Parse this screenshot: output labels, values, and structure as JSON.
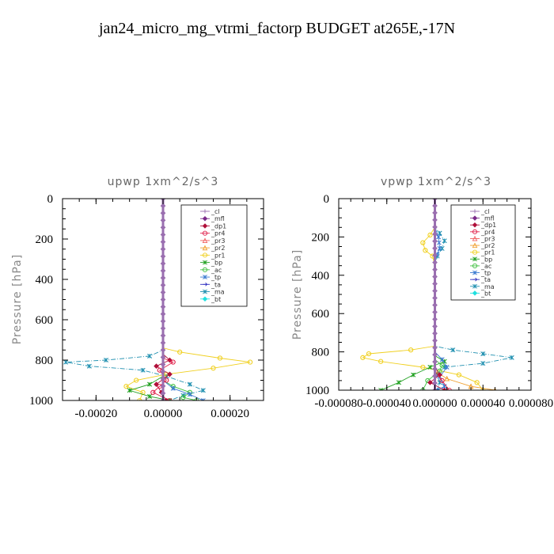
{
  "title": "jan24_micro_mg_vtrmi_factorp  BUDGET at265E,-17N",
  "legend_entries": [
    {
      "label": "_cl",
      "color": "#9a6fb0"
    },
    {
      "label": "_mfl",
      "color": "#7a2a8a"
    },
    {
      "label": "_dp1",
      "color": "#b0103a"
    },
    {
      "label": "_pr4",
      "color": "#e0204a"
    },
    {
      "label": "_pr3",
      "color": "#f06060"
    },
    {
      "label": "_pr2",
      "color": "#f0a030"
    },
    {
      "label": "_pr1",
      "color": "#f0d020"
    },
    {
      "label": "_bp",
      "color": "#20a020"
    },
    {
      "label": "_ac",
      "color": "#40c040"
    },
    {
      "label": "_tp",
      "color": "#3a7ad0"
    },
    {
      "label": "_ta",
      "color": "#3030c0"
    },
    {
      "label": "_ma",
      "color": "#2090b0"
    },
    {
      "label": "_bt",
      "color": "#20e0e0"
    }
  ],
  "chart_data": [
    {
      "type": "line",
      "title": "upwp   1xm^2/s^3",
      "ylabel": "Pressure [hPa]",
      "xlabel": "",
      "xlim": [
        -0.0003,
        0.0003
      ],
      "ylim": [
        1000,
        0
      ],
      "xticks": [
        -0.0002,
        0.0,
        0.0002
      ],
      "xtick_labels": [
        "-0.00020",
        "0.00000",
        "0.00020"
      ],
      "yticks": [
        0,
        200,
        400,
        600,
        800,
        1000
      ],
      "ytick_labels": [
        "0",
        "200",
        "400",
        "600",
        "800",
        "1000"
      ],
      "legend_position": "top-right",
      "series": [
        {
          "name": "_ma",
          "points": [
            [
              0,
              0
            ],
            [
              0,
              750
            ],
            [
              -4e-05,
              780
            ],
            [
              -0.00017,
              800
            ],
            [
              -0.00029,
              810
            ],
            [
              -0.00022,
              830
            ],
            [
              -6e-05,
              850
            ],
            [
              1e-05,
              880
            ],
            [
              8e-05,
              920
            ],
            [
              0.00012,
              950
            ],
            [
              6e-05,
              975
            ],
            [
              2e-05,
              1000
            ]
          ]
        },
        {
          "name": "_pr1",
          "points": [
            [
              0,
              0
            ],
            [
              0,
              740
            ],
            [
              5e-05,
              760
            ],
            [
              0.00017,
              790
            ],
            [
              0.00026,
              810
            ],
            [
              0.00015,
              840
            ],
            [
              1e-05,
              870
            ],
            [
              -8e-05,
              900
            ],
            [
              -0.00011,
              930
            ],
            [
              -6e-05,
              960
            ],
            [
              -7e-05,
              1000
            ]
          ]
        },
        {
          "name": "_bp",
          "points": [
            [
              0,
              0
            ],
            [
              0,
              880
            ],
            [
              -4e-05,
              920
            ],
            [
              -0.0001,
              950
            ],
            [
              -4e-05,
              980
            ],
            [
              2e-05,
              1000
            ]
          ]
        },
        {
          "name": "_ac",
          "points": [
            [
              0,
              0
            ],
            [
              0,
              900
            ],
            [
              3e-05,
              930
            ],
            [
              8e-05,
              960
            ],
            [
              6e-05,
              985
            ],
            [
              0.0001,
              1000
            ]
          ]
        },
        {
          "name": "_tp",
          "points": [
            [
              0,
              0
            ],
            [
              0,
              900
            ],
            [
              3e-05,
              940
            ],
            [
              8e-05,
              970
            ],
            [
              0.00012,
              1000
            ]
          ]
        },
        {
          "name": "_dp1",
          "points": [
            [
              0,
              0
            ],
            [
              0,
              770
            ],
            [
              2e-05,
              800
            ],
            [
              -2e-05,
              830
            ],
            [
              2e-05,
              870
            ],
            [
              -2e-05,
              920
            ],
            [
              1e-05,
              1000
            ]
          ]
        },
        {
          "name": "_pr4",
          "points": [
            [
              0,
              0
            ],
            [
              0,
              790
            ],
            [
              3e-05,
              810
            ],
            [
              -1e-05,
              850
            ],
            [
              1e-05,
              900
            ],
            [
              -3e-05,
              960
            ],
            [
              2e-05,
              1000
            ]
          ]
        },
        {
          "name": "_mfl",
          "points": [
            [
              0,
              0
            ],
            [
              0,
              1000
            ]
          ]
        },
        {
          "name": "_cl",
          "points": [
            [
              0,
              0
            ],
            [
              0,
              1000
            ]
          ]
        }
      ]
    },
    {
      "type": "line",
      "title": "vpwp   1xm^2/s^3",
      "ylabel": "Pressure [hPa]",
      "xlabel": "",
      "xlim": [
        -8e-05,
        8e-05
      ],
      "ylim": [
        1000,
        0
      ],
      "xticks": [
        -8e-05,
        -4e-05,
        0.0,
        4e-05,
        8e-05
      ],
      "xtick_labels": [
        "-0.000080",
        "-0.000040",
        "0.000000",
        "0.000040",
        "0.000080"
      ],
      "yticks": [
        0,
        200,
        400,
        600,
        800,
        1000
      ],
      "ytick_labels": [
        "0",
        "200",
        "400",
        "600",
        "800",
        "1000"
      ],
      "legend_position": "top-right",
      "series": [
        {
          "name": "_ma",
          "points": [
            [
              0,
              0
            ],
            [
              0,
              150
            ],
            [
              4e-06,
              180
            ],
            [
              8e-06,
              220
            ],
            [
              6e-06,
              260
            ],
            [
              2e-06,
              300
            ],
            [
              0,
              350
            ],
            [
              0,
              770
            ],
            [
              1.5e-05,
              790
            ],
            [
              4e-05,
              810
            ],
            [
              6.4e-05,
              830
            ],
            [
              4e-05,
              860
            ],
            [
              8e-06,
              880
            ],
            [
              2e-06,
              920
            ],
            [
              4e-06,
              960
            ],
            [
              2e-06,
              1000
            ]
          ]
        },
        {
          "name": "_pr1",
          "points": [
            [
              0,
              0
            ],
            [
              0,
              150
            ],
            [
              -4e-06,
              190
            ],
            [
              -1e-05,
              230
            ],
            [
              -8e-06,
              270
            ],
            [
              -2e-06,
              300
            ],
            [
              0,
              350
            ],
            [
              0,
              770
            ],
            [
              -2e-05,
              790
            ],
            [
              -5.5e-05,
              810
            ],
            [
              -6e-05,
              830
            ],
            [
              -4.5e-05,
              850
            ],
            [
              -1e-05,
              880
            ],
            [
              2e-05,
              920
            ],
            [
              3.5e-05,
              960
            ],
            [
              4e-05,
              1000
            ]
          ]
        },
        {
          "name": "_pr2",
          "points": [
            [
              0,
              0
            ],
            [
              0,
              900
            ],
            [
              1e-05,
              940
            ],
            [
              3e-05,
              980
            ],
            [
              5e-05,
              1000
            ]
          ]
        },
        {
          "name": "_bp",
          "points": [
            [
              0,
              0
            ],
            [
              0,
              820
            ],
            [
              8e-06,
              850
            ],
            [
              -4e-06,
              880
            ],
            [
              -1.8e-05,
              920
            ],
            [
              -3e-05,
              960
            ],
            [
              -4.5e-05,
              1000
            ]
          ]
        },
        {
          "name": "_ac",
          "points": [
            [
              0,
              0
            ],
            [
              0,
              840
            ],
            [
              6e-06,
              870
            ],
            [
              4e-06,
              900
            ],
            [
              -6e-06,
              950
            ],
            [
              -1e-05,
              1000
            ]
          ]
        },
        {
          "name": "_tp",
          "points": [
            [
              0,
              0
            ],
            [
              0,
              150
            ],
            [
              3e-06,
              200
            ],
            [
              4e-06,
              260
            ],
            [
              0,
              320
            ],
            [
              0,
              800
            ],
            [
              6e-06,
              840
            ],
            [
              1e-05,
              880
            ],
            [
              4e-06,
              930
            ],
            [
              8e-06,
              980
            ],
            [
              2e-06,
              1000
            ]
          ]
        },
        {
          "name": "_dp1",
          "points": [
            [
              0,
              0
            ],
            [
              0,
              880
            ],
            [
              4e-06,
              920
            ],
            [
              -4e-06,
              960
            ],
            [
              8e-06,
              1000
            ]
          ]
        },
        {
          "name": "_pr4",
          "points": [
            [
              0,
              0
            ],
            [
              0,
              900
            ],
            [
              6e-06,
              950
            ],
            [
              1.2e-05,
              1000
            ]
          ]
        },
        {
          "name": "_mfl",
          "points": [
            [
              0,
              0
            ],
            [
              0,
              1000
            ]
          ]
        },
        {
          "name": "_cl",
          "points": [
            [
              0,
              0
            ],
            [
              0,
              1000
            ]
          ]
        }
      ]
    }
  ]
}
